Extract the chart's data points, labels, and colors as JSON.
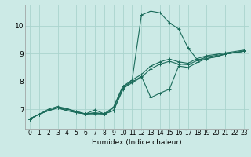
{
  "xlabel": "Humidex (Indice chaleur)",
  "bg_color": "#cceae6",
  "grid_color": "#aad4ce",
  "line_color": "#1a6b5a",
  "xlim": [
    -0.5,
    23.5
  ],
  "ylim": [
    6.3,
    10.75
  ],
  "yticks": [
    7,
    8,
    9,
    10
  ],
  "xticks": [
    0,
    1,
    2,
    3,
    4,
    5,
    6,
    7,
    8,
    9,
    10,
    11,
    12,
    13,
    14,
    15,
    16,
    17,
    18,
    19,
    20,
    21,
    22,
    23
  ],
  "lines": [
    [
      [
        0,
        6.65
      ],
      [
        1,
        6.82
      ],
      [
        2,
        6.95
      ],
      [
        3,
        7.05
      ],
      [
        4,
        6.95
      ],
      [
        5,
        6.88
      ],
      [
        6,
        6.83
      ],
      [
        7,
        6.87
      ],
      [
        8,
        6.83
      ],
      [
        9,
        6.95
      ],
      [
        10,
        7.75
      ],
      [
        11,
        7.95
      ],
      [
        12,
        8.15
      ],
      [
        13,
        8.45
      ],
      [
        14,
        8.62
      ],
      [
        15,
        8.72
      ],
      [
        16,
        8.62
      ],
      [
        17,
        8.6
      ],
      [
        18,
        8.75
      ],
      [
        19,
        8.88
      ],
      [
        20,
        8.93
      ],
      [
        21,
        8.98
      ],
      [
        22,
        9.03
      ],
      [
        23,
        9.08
      ]
    ],
    [
      [
        0,
        6.65
      ],
      [
        1,
        6.82
      ],
      [
        2,
        6.95
      ],
      [
        3,
        7.05
      ],
      [
        4,
        6.95
      ],
      [
        5,
        6.88
      ],
      [
        6,
        6.83
      ],
      [
        7,
        6.83
      ],
      [
        8,
        6.83
      ],
      [
        9,
        6.95
      ],
      [
        10,
        7.7
      ],
      [
        11,
        8.05
      ],
      [
        12,
        10.38
      ],
      [
        13,
        10.52
      ],
      [
        14,
        10.46
      ],
      [
        15,
        10.1
      ],
      [
        16,
        9.88
      ],
      [
        17,
        9.2
      ],
      [
        18,
        8.78
      ],
      [
        19,
        8.82
      ],
      [
        20,
        8.88
      ],
      [
        21,
        8.98
      ],
      [
        22,
        9.03
      ],
      [
        23,
        9.08
      ]
    ],
    [
      [
        0,
        6.65
      ],
      [
        1,
        6.82
      ],
      [
        2,
        7.0
      ],
      [
        3,
        7.1
      ],
      [
        4,
        7.02
      ],
      [
        5,
        6.92
      ],
      [
        6,
        6.83
      ],
      [
        7,
        6.87
      ],
      [
        8,
        6.83
      ],
      [
        9,
        7.05
      ],
      [
        10,
        7.82
      ],
      [
        11,
        8.05
      ],
      [
        12,
        8.25
      ],
      [
        13,
        8.55
      ],
      [
        14,
        8.7
      ],
      [
        15,
        8.8
      ],
      [
        16,
        8.7
      ],
      [
        17,
        8.65
      ],
      [
        18,
        8.82
      ],
      [
        19,
        8.92
      ],
      [
        20,
        8.97
      ],
      [
        21,
        9.02
      ],
      [
        22,
        9.07
      ],
      [
        23,
        9.12
      ]
    ],
    [
      [
        0,
        6.65
      ],
      [
        1,
        6.82
      ],
      [
        2,
        6.95
      ],
      [
        3,
        7.05
      ],
      [
        4,
        7.0
      ],
      [
        5,
        6.92
      ],
      [
        6,
        6.83
      ],
      [
        7,
        6.98
      ],
      [
        8,
        6.83
      ],
      [
        9,
        7.08
      ],
      [
        10,
        7.82
      ],
      [
        11,
        7.98
      ],
      [
        12,
        8.18
      ],
      [
        13,
        7.42
      ],
      [
        14,
        7.58
      ],
      [
        15,
        7.72
      ],
      [
        16,
        8.55
      ],
      [
        17,
        8.5
      ],
      [
        18,
        8.68
      ],
      [
        19,
        8.82
      ],
      [
        20,
        8.88
      ],
      [
        21,
        8.98
      ],
      [
        22,
        9.03
      ],
      [
        23,
        9.08
      ]
    ]
  ]
}
